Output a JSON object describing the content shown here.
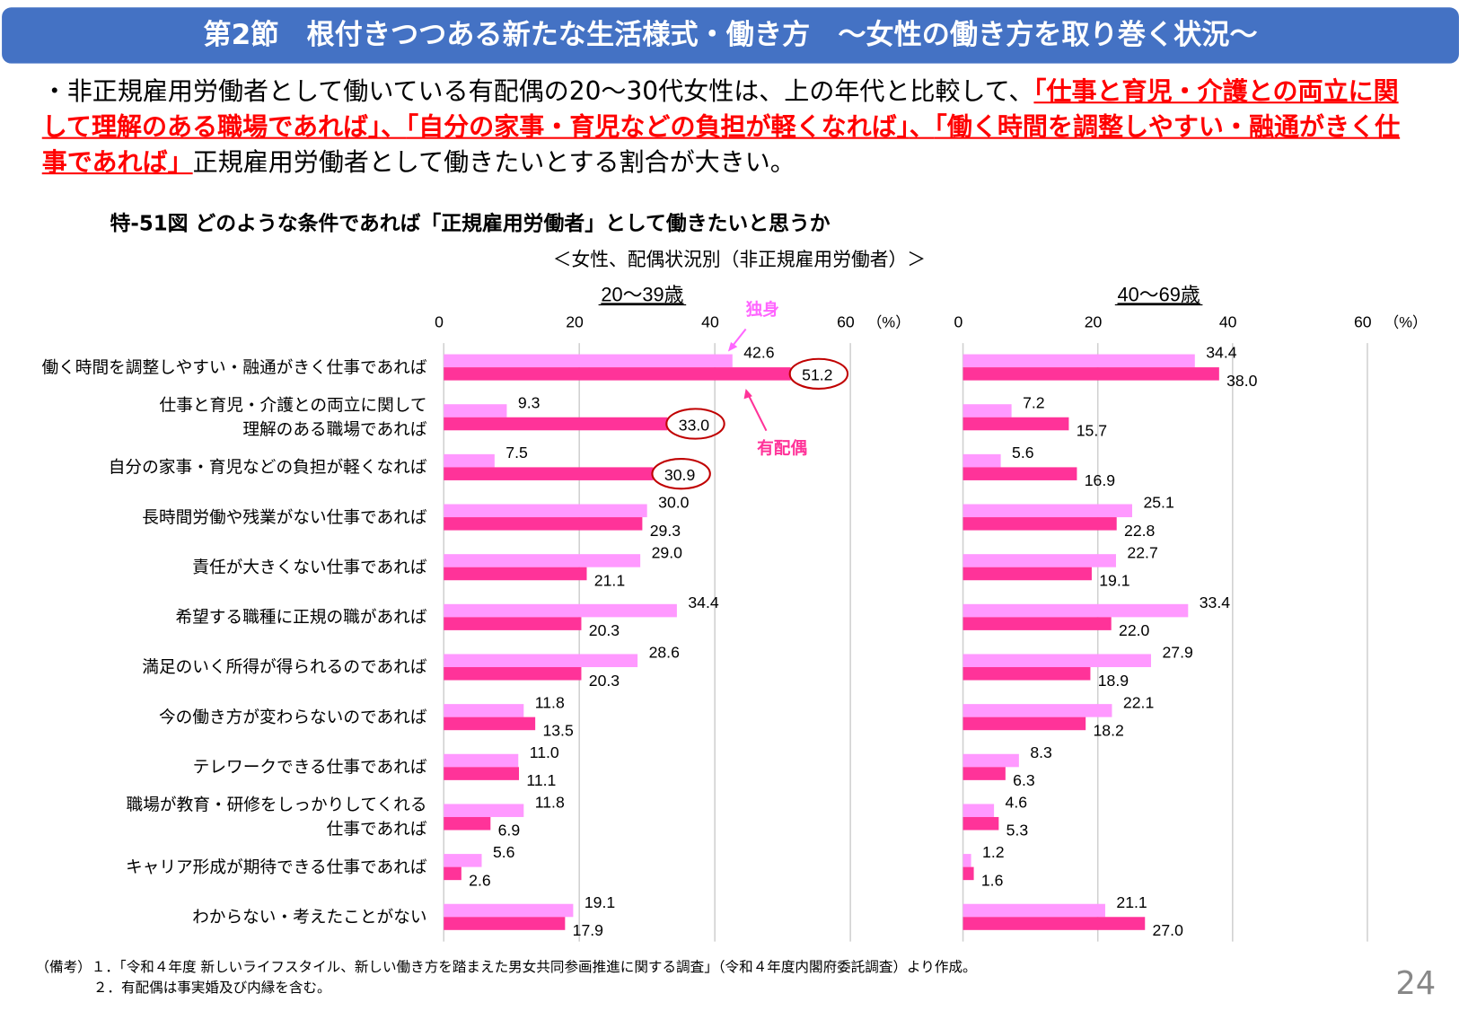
{
  "header": {
    "title": "第2節　根付きつつある新たな生活様式・働き方　～女性の働き方を取り巻く状況～"
  },
  "summary": {
    "prefix": "・非正規雇用労働者として働いている有配偶の20～30代女性は、上の年代と比較して、",
    "highlight1": "「仕事と育児・介護との両立に関して理解のある職場であれば」",
    "sep1": "、",
    "highlight2": "「自分の家事・育児などの負担が軽くなれば」",
    "sep2": "、",
    "highlight3": "「働く時間を調整しやすい・融通がきく仕事であれば」",
    "suffix": "正規雇用労働者として働きたいとする割合が大きい。"
  },
  "colors": {
    "single": "#FF99FF",
    "married": "#FF3399",
    "highlight": "#FF0000",
    "title_bar": "#4472C4",
    "circle": "#C00000"
  },
  "chart_data": {
    "type": "bar",
    "orientation": "horizontal",
    "title": "特-51図 どのような条件であれば「正規雇用労働者」として働きたいと思うか",
    "subtitle": "＜女性、配偶状況別（非正規雇用労働者）＞",
    "unit": "（%）",
    "xlim": [
      0,
      60
    ],
    "ticks": [
      "0",
      "20",
      "40",
      "60"
    ],
    "grid": true,
    "categories": [
      "働く時間を調整しやすい・融通がきく仕事であれば",
      "仕事と育児・介護との両立に関して\n理解のある職場であれば",
      "自分の家事・育児などの負担が軽くなれば",
      "長時間労働や残業がない仕事であれば",
      "責任が大きくない仕事であれば",
      "希望する職種に正規の職があれば",
      "満足のいく所得が得られるのであれば",
      "今の働き方が変わらないのであれば",
      "テレワークできる仕事であれば",
      "職場が教育・研修をしっかりしてくれる\n仕事であれば",
      "キャリア形成が期待できる仕事であれば",
      "わからない・考えたことがない"
    ],
    "panels": [
      {
        "title": "20～39歳",
        "series": [
          {
            "name": "独身",
            "values": [
              42.6,
              9.3,
              7.5,
              30.0,
              29.0,
              34.4,
              28.6,
              11.8,
              11.0,
              11.8,
              5.6,
              19.1
            ]
          },
          {
            "name": "有配偶",
            "values": [
              51.2,
              33.0,
              30.9,
              29.3,
              21.1,
              20.3,
              20.3,
              13.5,
              11.1,
              6.9,
              2.6,
              17.9
            ]
          }
        ],
        "circled_married": [
          0,
          1,
          2
        ]
      },
      {
        "title": "40～69歳",
        "series": [
          {
            "name": "独身",
            "values": [
              34.4,
              7.2,
              5.6,
              25.1,
              22.7,
              33.4,
              27.9,
              22.1,
              8.3,
              4.6,
              1.2,
              21.1
            ]
          },
          {
            "name": "有配偶",
            "values": [
              38.0,
              15.7,
              16.9,
              22.8,
              19.1,
              22.0,
              18.9,
              18.2,
              6.3,
              5.3,
              1.6,
              27.0
            ]
          }
        ],
        "circled_married": []
      }
    ],
    "annotations": {
      "single": "独身",
      "married": "有配偶"
    }
  },
  "footnote": {
    "line1": "（備考）１．「令和４年度 新しいライフスタイル、新しい働き方を踏まえた男女共同参画推進に関する調査」（令和４年度内閣府委託調査）より作成。",
    "line2": "２．有配偶は事実婚及び内縁を含む。"
  },
  "page_number": "24"
}
